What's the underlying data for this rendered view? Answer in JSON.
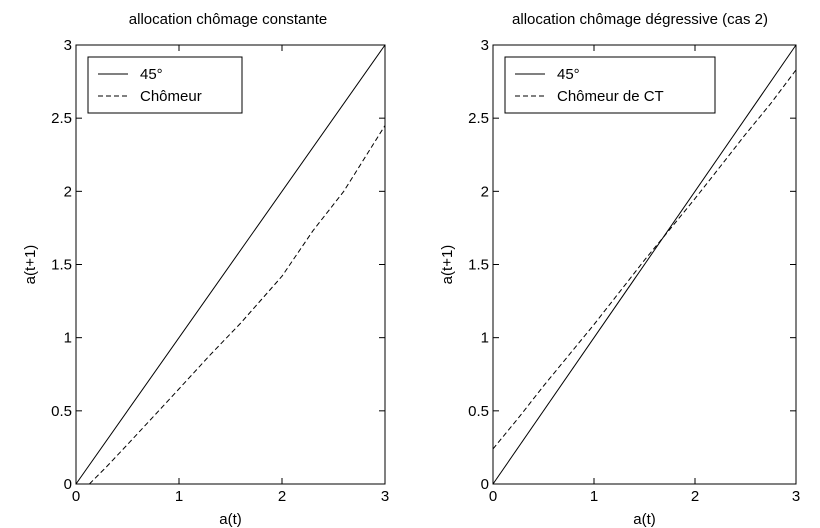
{
  "chart_data": [
    {
      "type": "line",
      "title": "allocation chômage constante",
      "xlabel": "a(t)",
      "ylabel": "a(t+1)",
      "xlim": [
        0,
        3
      ],
      "ylim": [
        0,
        3
      ],
      "xticks": [
        0,
        1,
        2,
        3
      ],
      "yticks": [
        0,
        0.5,
        1,
        1.5,
        2,
        2.5,
        3
      ],
      "xtick_labels": [
        "0",
        "1",
        "2",
        "3"
      ],
      "ytick_labels": [
        "0",
        "0.5",
        "1",
        "1.5",
        "2",
        "2.5",
        "3"
      ],
      "grid": false,
      "legend_position": "top-left",
      "series": [
        {
          "name": "45°",
          "style": "solid",
          "x": [
            0,
            3
          ],
          "y": [
            0,
            3
          ]
        },
        {
          "name": "Chômeur",
          "style": "dashed",
          "x": [
            0.13,
            0.3,
            0.5,
            0.75,
            1.0,
            1.3,
            1.6,
            2.0,
            2.3,
            2.6,
            3.0
          ],
          "y": [
            0.0,
            0.12,
            0.27,
            0.46,
            0.65,
            0.88,
            1.1,
            1.42,
            1.73,
            2.0,
            2.45
          ]
        }
      ]
    },
    {
      "type": "line",
      "title": "allocation chômage dégressive (cas 2)",
      "xlabel": "a(t)",
      "ylabel": "a(t+1)",
      "xlim": [
        0,
        3
      ],
      "ylim": [
        0,
        3
      ],
      "xticks": [
        0,
        1,
        2,
        3
      ],
      "yticks": [
        0,
        0.5,
        1,
        1.5,
        2,
        2.5,
        3
      ],
      "xtick_labels": [
        "0",
        "1",
        "2",
        "3"
      ],
      "ytick_labels": [
        "0",
        "0.5",
        "1",
        "1.5",
        "2",
        "2.5",
        "3"
      ],
      "grid": false,
      "legend_position": "top-left",
      "series": [
        {
          "name": "45°",
          "style": "solid",
          "x": [
            0,
            3
          ],
          "y": [
            0,
            3
          ]
        },
        {
          "name": "Chômeur de CT",
          "style": "dashed",
          "x": [
            0,
            0.25,
            0.5,
            0.75,
            1.0,
            1.25,
            1.5,
            1.75,
            2.0,
            2.25,
            2.5,
            2.75,
            3.0
          ],
          "y": [
            0.24,
            0.45,
            0.67,
            0.88,
            1.09,
            1.31,
            1.53,
            1.74,
            1.95,
            2.17,
            2.39,
            2.6,
            2.83
          ]
        }
      ]
    }
  ]
}
